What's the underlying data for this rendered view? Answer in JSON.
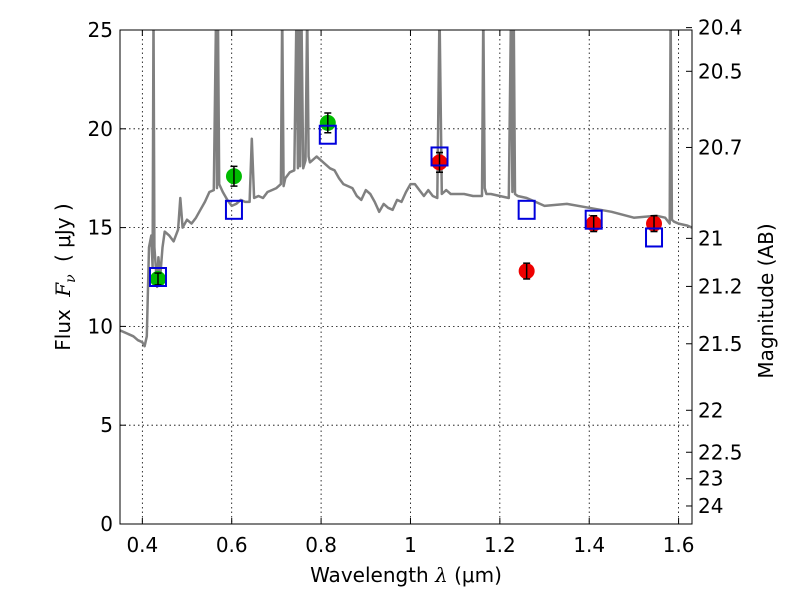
{
  "chart_data": {
    "type": "scatter",
    "title": "",
    "xlabel_prefix": "Wavelength",
    "xlabel_symbol": "λ",
    "xlabel_unit": "(μm)",
    "ylabel_prefix": "Flux",
    "ylabel_symbol": "F",
    "ylabel_subscript": "ν",
    "ylabel_unit": "( μJy )",
    "y2label": "Magnitude (AB)",
    "xlim": [
      0.35,
      1.63
    ],
    "ylim": [
      0,
      25
    ],
    "grid": true,
    "x_ticks": [
      0.4,
      0.6,
      0.8,
      1.0,
      1.2,
      1.4,
      1.6
    ],
    "x_tick_labels": [
      "0.4",
      "0.6",
      "0.8",
      "1",
      "1.2",
      "1.4",
      "1.6"
    ],
    "y_ticks": [
      0,
      5,
      10,
      15,
      20,
      25
    ],
    "y_tick_labels": [
      "0",
      "5",
      "10",
      "15",
      "20",
      "25"
    ],
    "y2_ticks": [
      20.4,
      20.5,
      20.7,
      21,
      21.2,
      21.5,
      22,
      22.5,
      23,
      24
    ],
    "y2_tick_labels": [
      "20.4",
      "20.5",
      "20.7",
      "21",
      "21.2",
      "21.5",
      "22",
      "22.5",
      "23",
      "24"
    ],
    "colors": {
      "spectrum": "#808080",
      "green": "#00bb00",
      "red": "#ee0000",
      "model": "#0000dd",
      "errorbar": "#000000"
    },
    "series": [
      {
        "kind": "line",
        "x": [
          0.35,
          0.37,
          0.38,
          0.39,
          0.4,
          0.405,
          0.41,
          0.415,
          0.42,
          0.423,
          0.425,
          0.427,
          0.43,
          0.433,
          0.436,
          0.44,
          0.445,
          0.45,
          0.46,
          0.47,
          0.48,
          0.485,
          0.49,
          0.5,
          0.51,
          0.52,
          0.53,
          0.54,
          0.55,
          0.56,
          0.565,
          0.567,
          0.569,
          0.572,
          0.58,
          0.59,
          0.6,
          0.61,
          0.62,
          0.63,
          0.64,
          0.645,
          0.65,
          0.66,
          0.67,
          0.68,
          0.69,
          0.7,
          0.71,
          0.713,
          0.716,
          0.72,
          0.73,
          0.74,
          0.745,
          0.748,
          0.75,
          0.753,
          0.756,
          0.76,
          0.765,
          0.769,
          0.772,
          0.775,
          0.78,
          0.79,
          0.8,
          0.81,
          0.82,
          0.83,
          0.84,
          0.85,
          0.86,
          0.87,
          0.88,
          0.89,
          0.9,
          0.91,
          0.92,
          0.93,
          0.94,
          0.95,
          0.96,
          0.97,
          0.98,
          0.99,
          1.0,
          1.01,
          1.02,
          1.03,
          1.04,
          1.05,
          1.06,
          1.065,
          1.07,
          1.08,
          1.09,
          1.1,
          1.12,
          1.14,
          1.15,
          1.16,
          1.163,
          1.166,
          1.17,
          1.18,
          1.2,
          1.22,
          1.225,
          1.228,
          1.231,
          1.234,
          1.24,
          1.26,
          1.28,
          1.3,
          1.35,
          1.4,
          1.45,
          1.5,
          1.55,
          1.57,
          1.58,
          1.582,
          1.585,
          1.59,
          1.6,
          1.62,
          1.63
        ],
        "y": [
          9.8,
          9.6,
          9.5,
          9.3,
          9.2,
          9.0,
          9.5,
          14.0,
          14.6,
          13.0,
          26,
          14.0,
          13.0,
          12.0,
          13.5,
          12.5,
          14.0,
          14.8,
          14.6,
          14.3,
          14.9,
          16.5,
          15.0,
          15.4,
          15.2,
          15.5,
          15.9,
          16.3,
          16.8,
          16.9,
          26,
          17.0,
          26,
          17.2,
          16.8,
          16.4,
          16.1,
          16.2,
          16.4,
          16.3,
          16.3,
          19.5,
          16.5,
          16.6,
          16.5,
          16.8,
          16.9,
          17.0,
          17.2,
          26,
          17.1,
          17.5,
          17.8,
          17.9,
          26,
          18.0,
          26,
          18.1,
          26,
          18.0,
          18.4,
          26,
          18.6,
          18.3,
          18.4,
          18.6,
          18.4,
          18.2,
          18.0,
          17.9,
          17.5,
          17.2,
          17.1,
          17.0,
          16.6,
          16.4,
          16.9,
          16.7,
          16.3,
          15.8,
          16.2,
          16.0,
          15.9,
          16.4,
          16.3,
          16.8,
          17.2,
          17.2,
          16.9,
          16.6,
          16.9,
          16.6,
          16.5,
          26,
          16.7,
          16.9,
          16.7,
          16.7,
          16.7,
          16.6,
          16.6,
          16.6,
          26,
          17.0,
          16.7,
          16.7,
          16.6,
          16.5,
          26,
          16.8,
          26,
          16.7,
          16.6,
          16.5,
          16.3,
          16.1,
          16.2,
          16.0,
          15.8,
          15.5,
          15.6,
          15.5,
          15.2,
          26,
          15.4,
          15.3,
          15.2,
          15.1,
          15.0
        ]
      },
      {
        "kind": "marker",
        "name": "",
        "color": "green",
        "marker": "circle",
        "x": [
          0.435,
          0.605,
          0.815
        ],
        "y": [
          12.4,
          17.6,
          20.3
        ],
        "yerr": [
          0.3,
          0.5,
          0.5
        ]
      },
      {
        "kind": "marker",
        "name": "",
        "color": "red",
        "marker": "circle",
        "x": [
          1.065,
          1.26,
          1.41,
          1.545
        ],
        "y": [
          18.3,
          12.8,
          15.2,
          15.2
        ],
        "yerr": [
          0.5,
          0.4,
          0.4,
          0.4
        ]
      },
      {
        "kind": "marker",
        "name": "",
        "color": "model",
        "marker": "open-square",
        "x": [
          0.435,
          0.605,
          0.815,
          1.065,
          1.26,
          1.41,
          1.545
        ],
        "y": [
          12.5,
          15.9,
          19.7,
          18.6,
          15.9,
          15.4,
          14.5
        ]
      }
    ]
  }
}
